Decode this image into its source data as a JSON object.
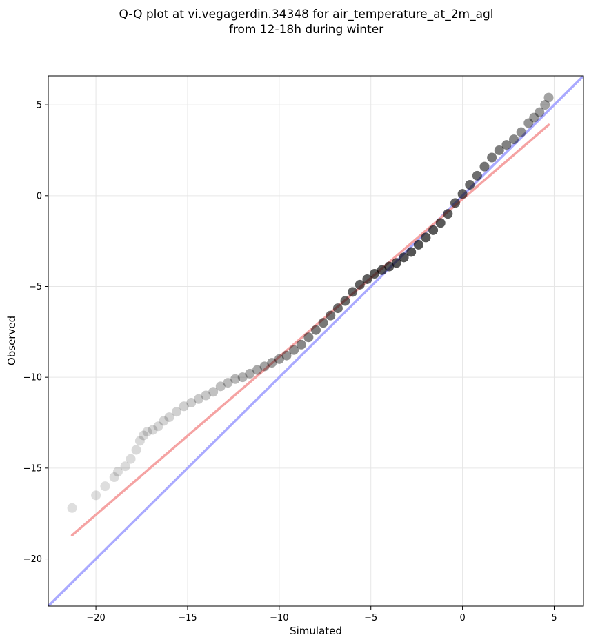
{
  "chart_data": {
    "type": "scatter",
    "title": "Q-Q plot at vi.vegagerdin.34348 for air_temperature_at_2m_agl",
    "subtitle": "from 12-18h during winter",
    "xlabel": "Simulated",
    "ylabel": "Observed",
    "xlim": [
      -22.6,
      6.6
    ],
    "ylim": [
      -22.6,
      6.6
    ],
    "xticks": [
      -20,
      -15,
      -10,
      -5,
      0,
      5
    ],
    "yticks": [
      -20,
      -15,
      -10,
      -5,
      0,
      5
    ],
    "xtick_labels": [
      "−20",
      "−15",
      "−10",
      "−5",
      "0",
      "5"
    ],
    "ytick_labels": [
      "−20",
      "−15",
      "−10",
      "−5",
      "0",
      "5"
    ],
    "grid": true,
    "colors": {
      "points": "#000000",
      "identity_line": "#aaaaff",
      "fit_line": "#f5a3a3"
    },
    "series": [
      {
        "type": "scatter",
        "x": [
          -21.3,
          -20.0,
          -19.5,
          -19.0,
          -18.8,
          -18.4,
          -18.1,
          -17.8,
          -17.6,
          -17.4,
          -17.2,
          -16.9,
          -16.6,
          -16.3,
          -16.0,
          -15.6,
          -15.2,
          -14.8,
          -14.4,
          -14.0,
          -13.6,
          -13.2,
          -12.8,
          -12.4,
          -12.0,
          -11.6,
          -11.2,
          -10.8,
          -10.4,
          -10.0,
          -9.6,
          -9.2,
          -8.8,
          -8.4,
          -8.0,
          -7.6,
          -7.2,
          -6.8,
          -6.4,
          -6.0,
          -5.6,
          -5.2,
          -4.8,
          -4.4,
          -4.0,
          -3.6,
          -3.2,
          -2.8,
          -2.4,
          -2.0,
          -1.6,
          -1.2,
          -0.8,
          -0.4,
          0.0,
          0.4,
          0.8,
          1.2,
          1.6,
          2.0,
          2.4,
          2.8,
          3.2,
          3.6,
          3.9,
          4.2,
          4.5,
          4.7
        ],
        "y": [
          -17.2,
          -16.5,
          -16.0,
          -15.5,
          -15.2,
          -14.9,
          -14.5,
          -14.0,
          -13.5,
          -13.2,
          -13.0,
          -12.9,
          -12.7,
          -12.4,
          -12.2,
          -11.9,
          -11.6,
          -11.4,
          -11.2,
          -11.0,
          -10.8,
          -10.5,
          -10.3,
          -10.1,
          -10.0,
          -9.8,
          -9.6,
          -9.4,
          -9.2,
          -9.0,
          -8.8,
          -8.5,
          -8.2,
          -7.8,
          -7.4,
          -7.0,
          -6.6,
          -6.2,
          -5.8,
          -5.3,
          -4.9,
          -4.6,
          -4.3,
          -4.1,
          -3.9,
          -3.7,
          -3.4,
          -3.1,
          -2.7,
          -2.3,
          -1.9,
          -1.5,
          -1.0,
          -0.4,
          0.1,
          0.6,
          1.1,
          1.6,
          2.1,
          2.5,
          2.8,
          3.1,
          3.5,
          4.0,
          4.3,
          4.6,
          5.0,
          5.4
        ]
      },
      {
        "type": "line",
        "x": [
          -22.6,
          6.6
        ],
        "y": [
          -22.6,
          6.6
        ]
      },
      {
        "type": "line",
        "x": [
          -21.3,
          4.7
        ],
        "y": [
          -18.7,
          3.9
        ]
      }
    ]
  }
}
